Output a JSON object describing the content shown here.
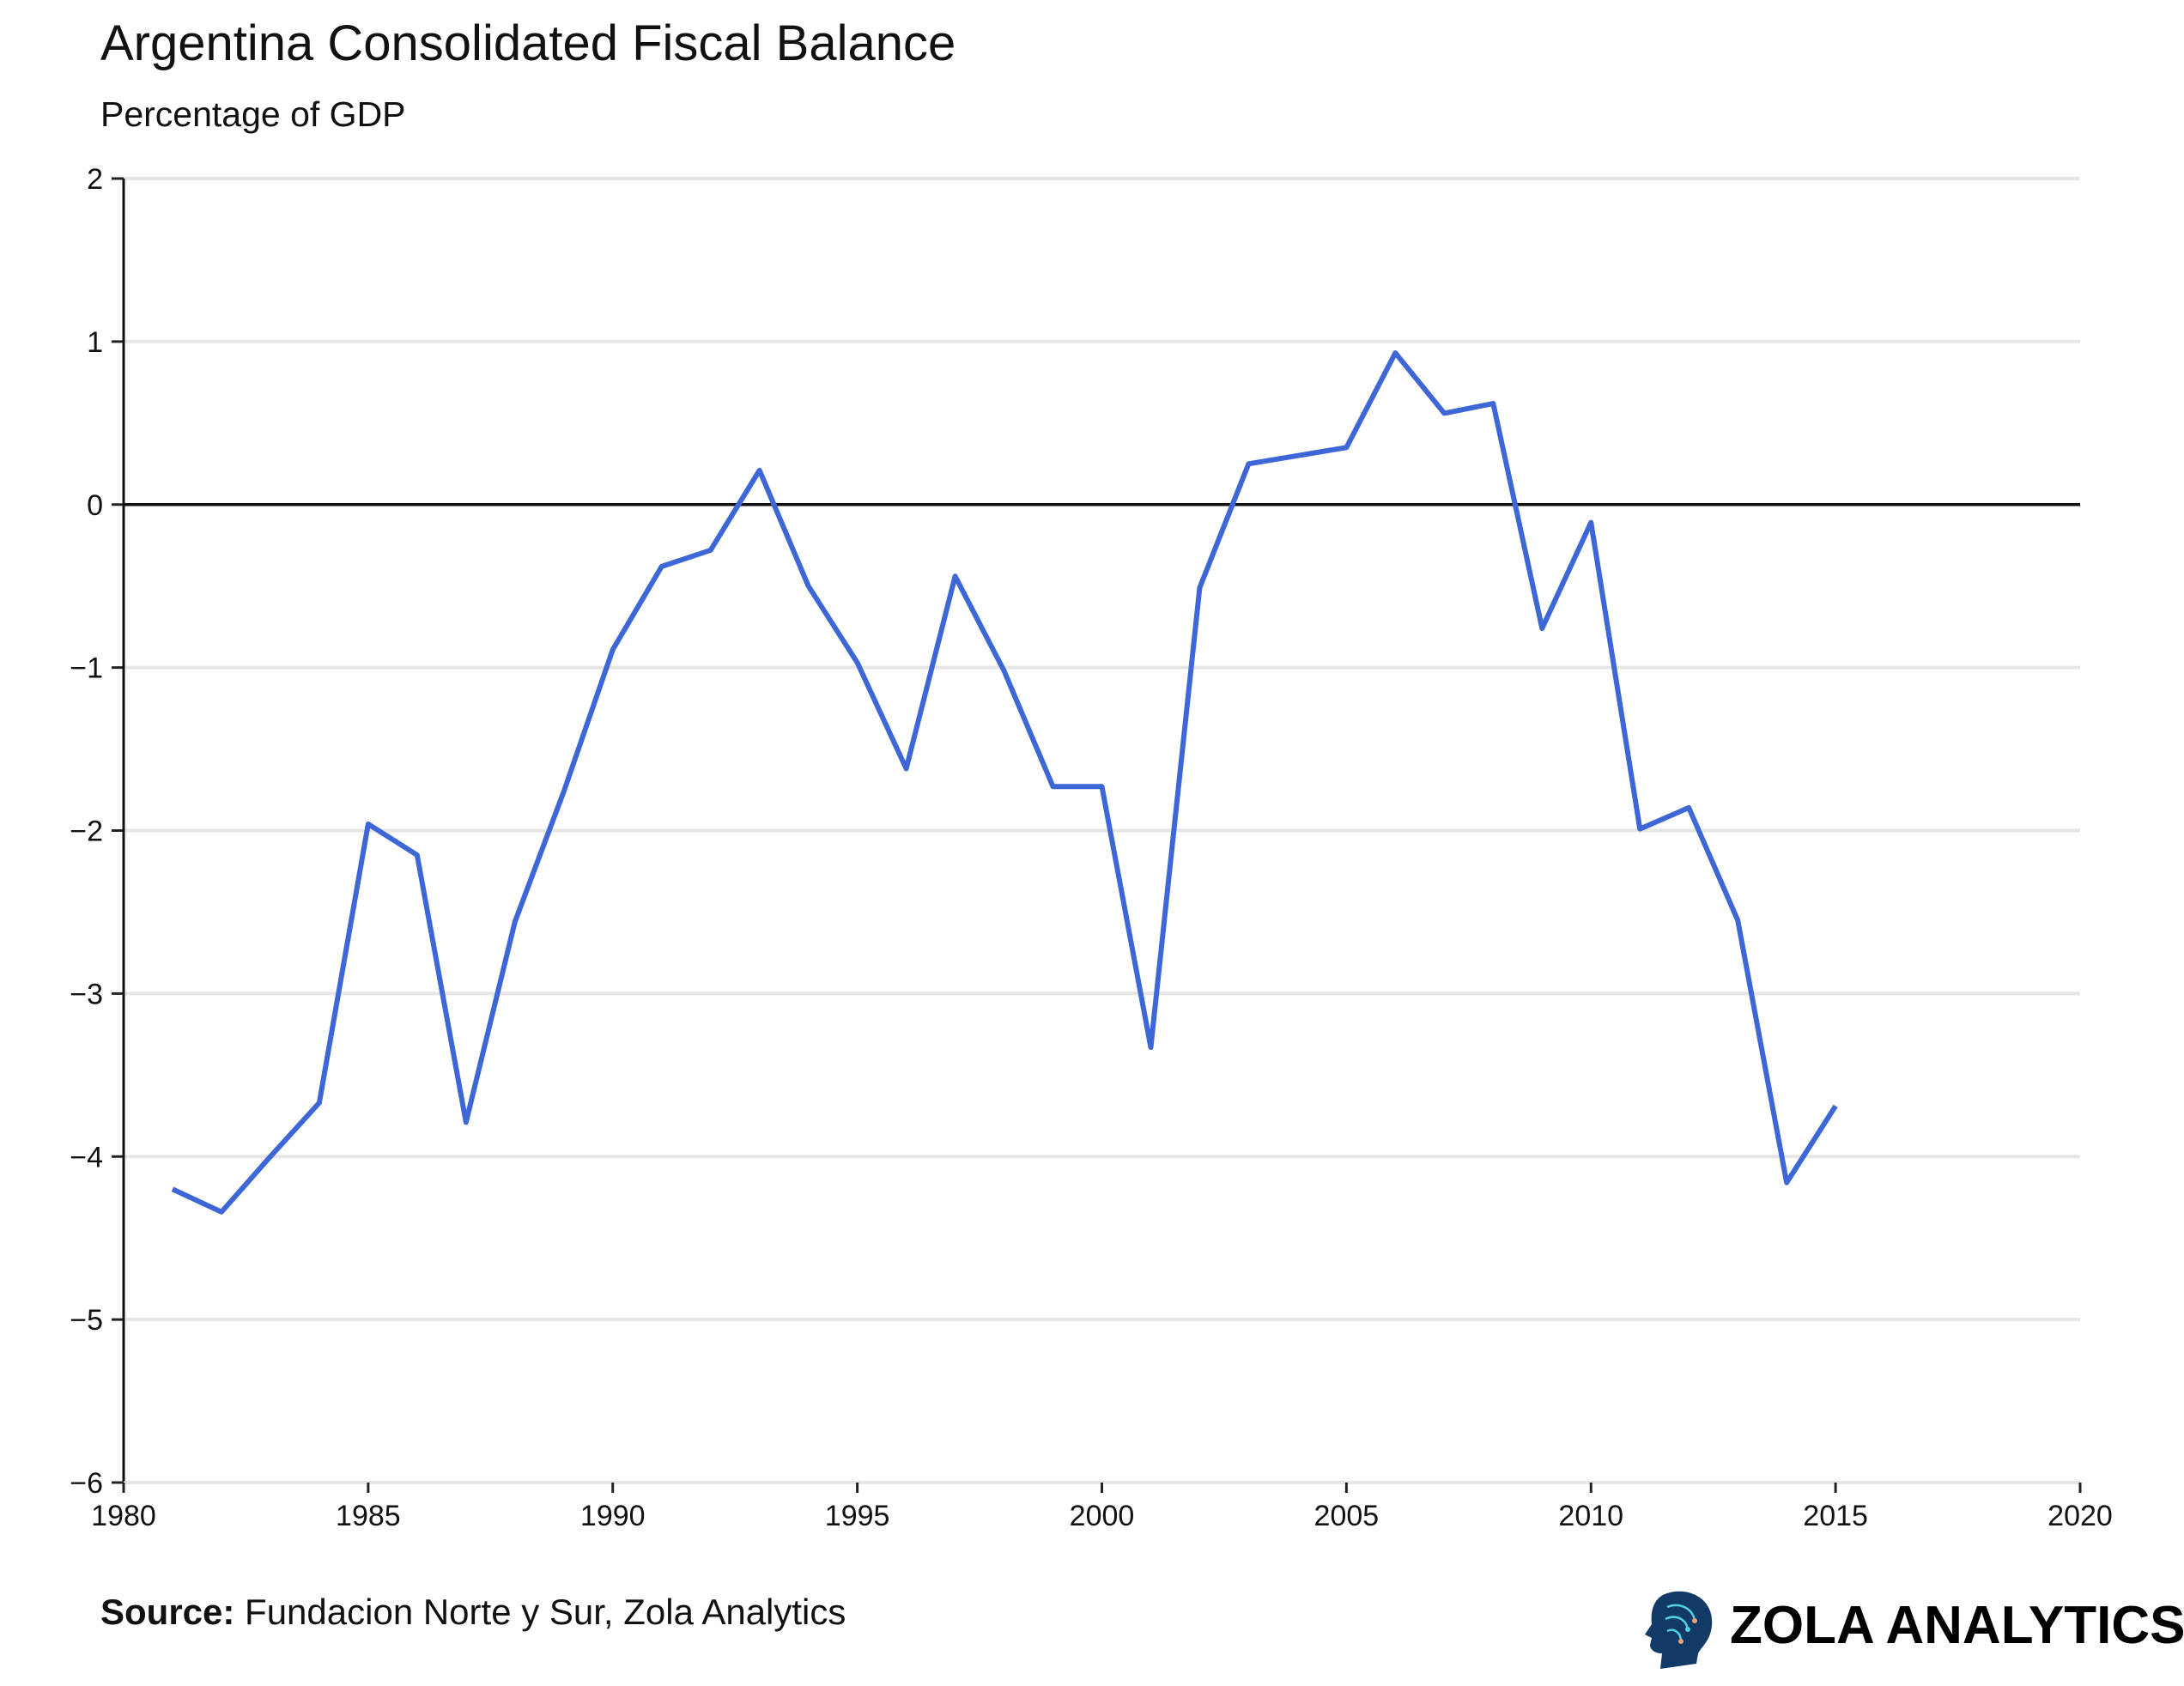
{
  "chart_data": {
    "type": "line",
    "title": "Argentina Consolidated Fiscal Balance",
    "subtitle": "Percentage of GDP",
    "xlabel": "",
    "ylabel": "",
    "xlim": [
      1980,
      2020
    ],
    "ylim": [
      -6,
      2
    ],
    "x_ticks": [
      "1980",
      "1985",
      "1990",
      "1995",
      "2000",
      "2005",
      "2010",
      "2015",
      "2020"
    ],
    "y_ticks": [
      "2",
      "1",
      "0",
      "−1",
      "−2",
      "−3",
      "−4",
      "−5",
      "−6"
    ],
    "grid": "horizontal",
    "zero_line": true,
    "series": [
      {
        "color": "#3d67d6",
        "x": [
          1981,
          1982,
          1983,
          1984,
          1985,
          1986,
          1987,
          1988,
          1989,
          1990,
          1991,
          1992,
          1993,
          1994,
          1995,
          1996,
          1997,
          1998,
          1999,
          2000,
          2001,
          2002,
          2003,
          2004,
          2005,
          2006,
          2007,
          2008,
          2009,
          2010,
          2011,
          2012,
          2013,
          2014,
          2015
        ],
        "values": [
          -4.2,
          -4.34,
          -4.0,
          -3.67,
          -1.96,
          -2.15,
          -3.79,
          -2.56,
          -1.76,
          -0.89,
          -0.38,
          -0.28,
          0.21,
          -0.5,
          -0.97,
          -1.62,
          -0.44,
          -1.02,
          -1.73,
          -1.73,
          -3.33,
          -0.51,
          0.25,
          0.3,
          0.35,
          0.93,
          0.56,
          0.62,
          -0.76,
          -0.11,
          -1.99,
          -1.86,
          -2.55,
          -4.16,
          -3.69
        ]
      }
    ]
  },
  "footer": {
    "source_label": "Source:",
    "source_text": " Fundacion Norte y Sur, Zola Analytics",
    "brand": "ZOLA ANALYTICS"
  }
}
